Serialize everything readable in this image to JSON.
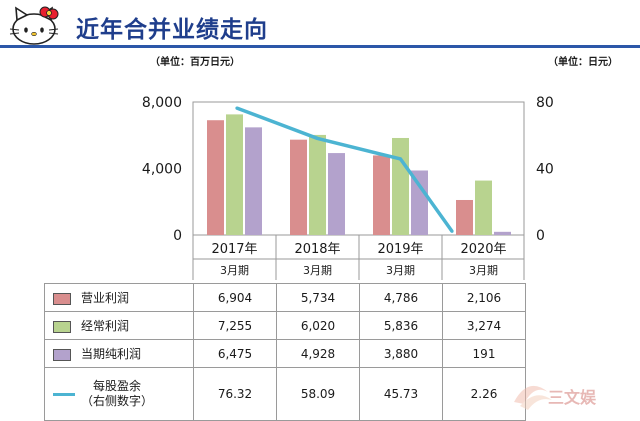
{
  "header": {
    "title": "近年合并业绩走向"
  },
  "units": {
    "left": "（单位：百万日元）",
    "right": "（单位：日元）"
  },
  "colors": {
    "operating": "#d98e8e",
    "ordinary": "#b8d38f",
    "net": "#b3a2cc",
    "eps": "#4cb4d2",
    "title": "#1f3e8c",
    "rule": "#2c57a8"
  },
  "chart_data": {
    "type": "bar",
    "categories": [
      "2017年",
      "2018年",
      "2019年",
      "2020年"
    ],
    "category_sublabels": [
      "3月期",
      "3月期",
      "3月期",
      "3月期"
    ],
    "left_axis": {
      "ticks": [
        "8,000",
        "4,000",
        "0"
      ],
      "ylim": [
        0,
        8000
      ]
    },
    "right_axis": {
      "ticks": [
        "80",
        "40",
        "0"
      ],
      "ylim": [
        0,
        80
      ]
    },
    "series": [
      {
        "name": "营业利润",
        "type": "bar",
        "axis": "left",
        "values": [
          6904,
          5734,
          4786,
          2106
        ],
        "labels": [
          "6,904",
          "5,734",
          "4,786",
          "2,106"
        ]
      },
      {
        "name": "经常利润",
        "type": "bar",
        "axis": "left",
        "values": [
          7255,
          6020,
          5836,
          3274
        ],
        "labels": [
          "7,255",
          "6,020",
          "5,836",
          "3,274"
        ]
      },
      {
        "name": "当期纯利润",
        "type": "bar",
        "axis": "left",
        "values": [
          6475,
          4928,
          3880,
          191
        ],
        "labels": [
          "6,475",
          "4,928",
          "3,880",
          "191"
        ]
      },
      {
        "name": "每股盈余",
        "name_line2": "（右侧数字）",
        "type": "line",
        "axis": "right",
        "values": [
          76.32,
          58.09,
          45.73,
          2.26
        ],
        "labels": [
          "76.32",
          "58.09",
          "45.73",
          "2.26"
        ]
      }
    ],
    "grid": false
  },
  "watermark": {
    "text": "三文娱"
  }
}
